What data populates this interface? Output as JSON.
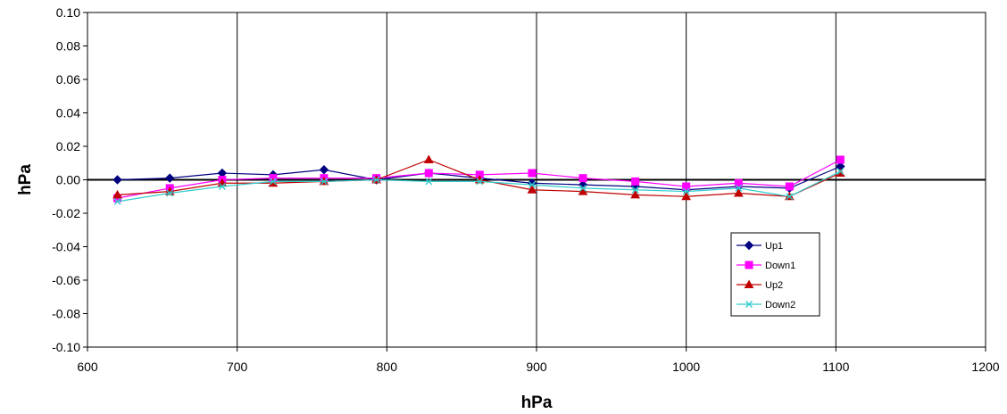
{
  "chart_data": {
    "type": "line",
    "xlabel": "hPa",
    "ylabel": "hPa",
    "xlim": [
      600,
      1200
    ],
    "ylim": [
      -0.1,
      0.1
    ],
    "x_ticks": [
      600,
      700,
      800,
      900,
      1000,
      1100,
      1200
    ],
    "x_tick_labels": [
      "600",
      "700",
      "800",
      "900",
      "1000",
      "1100",
      "1200"
    ],
    "y_ticks": [
      0.1,
      0.08,
      0.06,
      0.04,
      0.02,
      0.0,
      -0.02,
      -0.04,
      -0.06,
      -0.08,
      -0.1
    ],
    "y_tick_labels": [
      "0.10",
      "0.08",
      "0.06",
      "0.04",
      "0.02",
      "0.00",
      "-0.02",
      "-0.04",
      "-0.06",
      "-0.08",
      "-0.10"
    ],
    "grid": "vertical",
    "legend_position": "bottom-right",
    "series": [
      {
        "name": "Up1",
        "color": "#000080",
        "marker": "diamond",
        "x": [
          620,
          655,
          690,
          724,
          758,
          793,
          828,
          862,
          897,
          931,
          966,
          1000,
          1035,
          1069,
          1103
        ],
        "y": [
          0.0,
          0.001,
          0.004,
          0.003,
          0.006,
          0.0,
          0.004,
          0.001,
          -0.002,
          -0.003,
          -0.004,
          -0.006,
          -0.004,
          -0.005,
          0.008
        ]
      },
      {
        "name": "Down1",
        "color": "#ff00ff",
        "marker": "square",
        "x": [
          620,
          655,
          690,
          724,
          758,
          793,
          828,
          862,
          897,
          931,
          966,
          1000,
          1035,
          1069,
          1103
        ],
        "y": [
          -0.011,
          -0.005,
          0.0,
          0.001,
          0.001,
          0.001,
          0.004,
          0.003,
          0.004,
          0.001,
          -0.001,
          -0.004,
          -0.002,
          -0.004,
          0.012
        ]
      },
      {
        "name": "Up2",
        "color": "#c00000",
        "marker": "triangle",
        "x": [
          620,
          655,
          690,
          724,
          758,
          793,
          828,
          862,
          897,
          931,
          966,
          1000,
          1035,
          1069,
          1103
        ],
        "y": [
          -0.009,
          -0.007,
          -0.002,
          -0.002,
          -0.001,
          0.0,
          0.012,
          0.0,
          -0.006,
          -0.007,
          -0.009,
          -0.01,
          -0.008,
          -0.01,
          0.004
        ]
      },
      {
        "name": "Down2",
        "color": "#33cccc",
        "marker": "x",
        "x": [
          620,
          655,
          690,
          724,
          758,
          793,
          828,
          862,
          897,
          931,
          966,
          1000,
          1035,
          1069,
          1103
        ],
        "y": [
          -0.013,
          -0.008,
          -0.004,
          -0.001,
          -0.001,
          0.0,
          -0.001,
          -0.001,
          -0.003,
          -0.005,
          -0.006,
          -0.007,
          -0.005,
          -0.01,
          0.005
        ]
      }
    ]
  }
}
